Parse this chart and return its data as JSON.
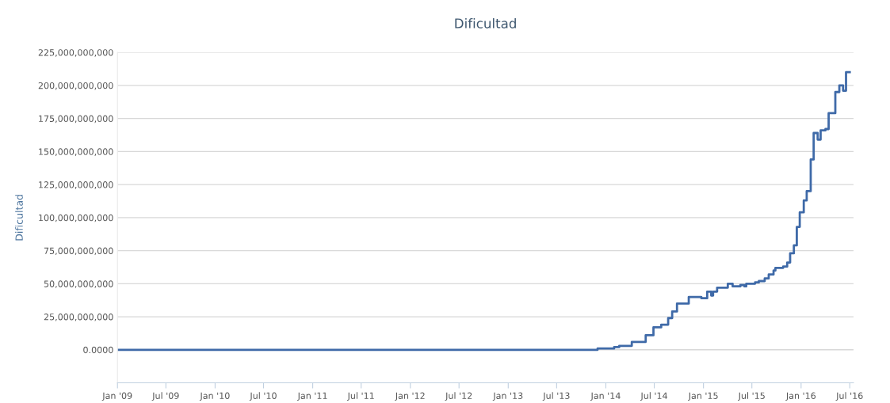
{
  "chart_data": {
    "type": "step",
    "title": "Dificultad",
    "ylabel": "Dificultad",
    "x": [
      "2009-01-03",
      "2013-09-01",
      "2013-10-15",
      "2013-12-01",
      "2014-01-01",
      "2014-02-01",
      "2014-02-20",
      "2014-04-08",
      "2014-05-30",
      "2014-06-28",
      "2014-07-27",
      "2014-08-22",
      "2014-09-06",
      "2014-09-24",
      "2014-11-07",
      "2014-12-24",
      "2015-01-15",
      "2015-01-30",
      "2015-02-06",
      "2015-02-21",
      "2015-03-18",
      "2015-04-02",
      "2015-04-20",
      "2015-05-19",
      "2015-06-03",
      "2015-06-10",
      "2015-07-13",
      "2015-07-27",
      "2015-08-18",
      "2015-09-02",
      "2015-09-20",
      "2015-09-27",
      "2015-10-26",
      "2015-11-10",
      "2015-11-21",
      "2015-12-05",
      "2015-12-16",
      "2015-12-27",
      "2016-01-11",
      "2016-01-22",
      "2016-02-06",
      "2016-02-17",
      "2016-03-03",
      "2016-03-14",
      "2016-04-01",
      "2016-04-13",
      "2016-05-08",
      "2016-05-23",
      "2016-06-06",
      "2016-06-17",
      "2016-07-01"
    ],
    "series": [
      {
        "color": "#3f6aa8",
        "values": [
          0,
          0,
          0,
          1000000000,
          1000000000,
          2000000000,
          3000000000,
          6000000000,
          11000000000,
          17000000000,
          19000000000,
          24000000000,
          29000000000,
          35000000000,
          40000000000,
          39000000000,
          44000000000,
          41000000000,
          44000000000,
          47000000000,
          47000000000,
          50000000000,
          48000000000,
          49000000000,
          48000000000,
          50000000000,
          51000000000,
          52000000000,
          54000000000,
          57000000000,
          60000000000,
          62000000000,
          63000000000,
          66000000000,
          73000000000,
          79000000000,
          93000000000,
          104000000000,
          113000000000,
          120000000000,
          144000000000,
          164000000000,
          159000000000,
          166000000000,
          167000000000,
          179000000000,
          195000000000,
          200000000000,
          196000000000,
          210000000000,
          210000000000
        ]
      }
    ],
    "xlim": [
      "2009-01-01",
      "2016-07-15"
    ],
    "xticks": [
      {
        "value": "2009-01-01",
        "label": "Jan '09"
      },
      {
        "value": "2009-07-01",
        "label": "Jul '09"
      },
      {
        "value": "2010-01-01",
        "label": "Jan '10"
      },
      {
        "value": "2010-07-01",
        "label": "Jul '10"
      },
      {
        "value": "2011-01-01",
        "label": "Jan '11"
      },
      {
        "value": "2011-07-01",
        "label": "Jul '11"
      },
      {
        "value": "2012-01-01",
        "label": "Jan '12"
      },
      {
        "value": "2012-07-01",
        "label": "Jul '12"
      },
      {
        "value": "2013-01-01",
        "label": "Jan '13"
      },
      {
        "value": "2013-07-01",
        "label": "Jul '13"
      },
      {
        "value": "2014-01-01",
        "label": "Jan '14"
      },
      {
        "value": "2014-07-01",
        "label": "Jul '14"
      },
      {
        "value": "2015-01-01",
        "label": "Jan '15"
      },
      {
        "value": "2015-07-01",
        "label": "Jul '15"
      },
      {
        "value": "2016-01-01",
        "label": "Jan '16"
      },
      {
        "value": "2016-07-01",
        "label": "Jul '16"
      }
    ],
    "ylim": [
      -25000000000,
      225000000000
    ],
    "yticks": [
      {
        "value": 0,
        "label": "0.0000"
      },
      {
        "value": 25000000000,
        "label": "25,000,000,000"
      },
      {
        "value": 50000000000,
        "label": "50,000,000,000"
      },
      {
        "value": 75000000000,
        "label": "75,000,000,000"
      },
      {
        "value": 100000000000,
        "label": "100,000,000,000"
      },
      {
        "value": 125000000000,
        "label": "125,000,000,000"
      },
      {
        "value": 150000000000,
        "label": "150,000,000,000"
      },
      {
        "value": 175000000000,
        "label": "175,000,000,000"
      },
      {
        "value": 200000000000,
        "label": "200,000,000,000"
      },
      {
        "value": 225000000000,
        "label": "225,000,000,000"
      }
    ],
    "grid": "y",
    "marker": "none",
    "line_style": "solid"
  }
}
